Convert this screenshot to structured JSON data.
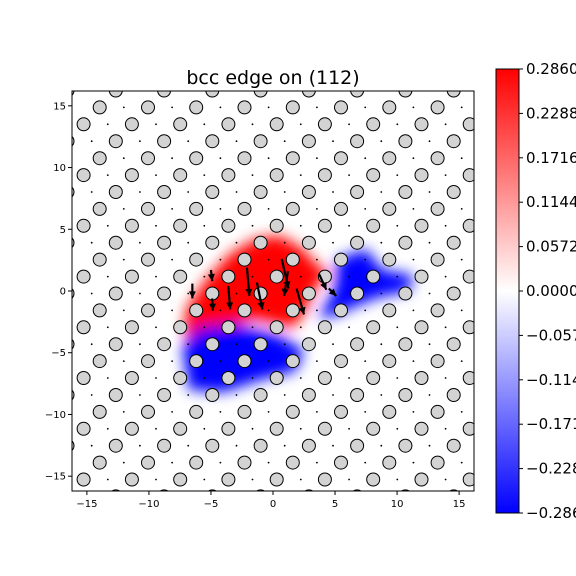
{
  "chart_data": {
    "type": "scatter",
    "title": "bcc edge on (112)",
    "xlabel": "",
    "ylabel": "",
    "xlim": [
      -16.2,
      16.2
    ],
    "ylim": [
      -16.2,
      16.2
    ],
    "x_ticks": [
      -15,
      -10,
      -5,
      0,
      5,
      10,
      15
    ],
    "y_ticks": [
      -15,
      -10,
      -5,
      0,
      5,
      10,
      15
    ],
    "x_tick_labels": [
      "−15",
      "−10",
      "−5",
      "0",
      "5",
      "10",
      "15"
    ],
    "y_tick_labels": [
      "−15",
      "−10",
      "−5",
      "0",
      "5",
      "10",
      "15"
    ],
    "lattice": {
      "row_spacing": 1.37,
      "col_spacing": 3.89,
      "row_shift": 1.945,
      "atom_radius": 0.52,
      "atom_fill": "#d3d3d3",
      "atom_edge": "#000000"
    },
    "colormap": {
      "name": "bwr",
      "min": -0.286,
      "max": 0.286,
      "low_color": "#0000ff",
      "mid_color": "#ffffff",
      "high_color": "#ff0000",
      "tick_values": [
        0.286,
        0.2288,
        0.1716,
        0.1144,
        0.0572,
        0.0,
        -0.0572,
        -0.1144,
        -0.1716,
        -0.2288,
        -0.286
      ],
      "tick_labels": [
        "0.2860",
        "0.2288",
        "0.1716",
        "0.1144",
        "0.0572",
        "0.0000",
        "−0.0572",
        "−0.1144",
        "−0.1716",
        "−0.2288",
        "−0.2860"
      ]
    },
    "field_regions": [
      {
        "polygon": [
          [
            -7.2,
            -3.5
          ],
          [
            -7.0,
            -1.5
          ],
          [
            -5.5,
            0.8
          ],
          [
            -3.5,
            3.0
          ],
          [
            -1.5,
            4.2
          ],
          [
            0.5,
            4.5
          ],
          [
            2.2,
            3.6
          ],
          [
            3.5,
            2.2
          ],
          [
            4.5,
            1.5
          ],
          [
            3.4,
            0.2
          ],
          [
            2.5,
            -1.8
          ],
          [
            1.6,
            -3.0
          ],
          [
            -1.5,
            -2.3
          ],
          [
            -4.5,
            -3.0
          ],
          [
            -6.5,
            -4.0
          ]
        ],
        "value": 0.286
      },
      {
        "polygon": [
          [
            -7.3,
            -4.5
          ],
          [
            -6.0,
            -3.0
          ],
          [
            -3.0,
            -2.7
          ],
          [
            0.5,
            -3.6
          ],
          [
            2.5,
            -4.8
          ],
          [
            1.8,
            -6.5
          ],
          [
            -1.0,
            -7.2
          ],
          [
            -4.0,
            -8.2
          ],
          [
            -6.8,
            -8.0
          ]
        ],
        "value": -0.286
      },
      {
        "polygon": [
          [
            3.6,
            -2.2
          ],
          [
            5.0,
            0.2
          ],
          [
            5.2,
            2.6
          ],
          [
            7.5,
            3.4
          ],
          [
            8.8,
            1.7
          ],
          [
            11.3,
            1.3
          ],
          [
            11.0,
            0.0
          ],
          [
            8.5,
            -0.5
          ],
          [
            6.5,
            -1.3
          ],
          [
            5.0,
            -2.0
          ]
        ],
        "value": -0.286
      }
    ],
    "arrows": [
      {
        "x": -3.6,
        "y": 0.4,
        "dx": 0.15,
        "dy": -1.9
      },
      {
        "x": -2.1,
        "y": 1.9,
        "dx": 0.2,
        "dy": -2.3
      },
      {
        "x": -1.3,
        "y": 0.7,
        "dx": 0.45,
        "dy": -2.2
      },
      {
        "x": 0.7,
        "y": 2.6,
        "dx": 0.55,
        "dy": -2.4
      },
      {
        "x": 1.2,
        "y": 1.6,
        "dx": -0.3,
        "dy": -2.0
      },
      {
        "x": 1.9,
        "y": 0.2,
        "dx": 0.6,
        "dy": -2.1
      },
      {
        "x": 3.7,
        "y": 1.4,
        "dx": 0.6,
        "dy": -1.3
      },
      {
        "x": 4.5,
        "y": 0.2,
        "dx": 0.6,
        "dy": -0.6
      },
      {
        "x": -6.5,
        "y": 0.6,
        "dx": 0.0,
        "dy": -1.2
      },
      {
        "x": -4.9,
        "y": -0.6,
        "dx": 0.05,
        "dy": -1.0
      },
      {
        "x": -5.0,
        "y": 1.7,
        "dx": 0.1,
        "dy": -0.9
      }
    ]
  }
}
